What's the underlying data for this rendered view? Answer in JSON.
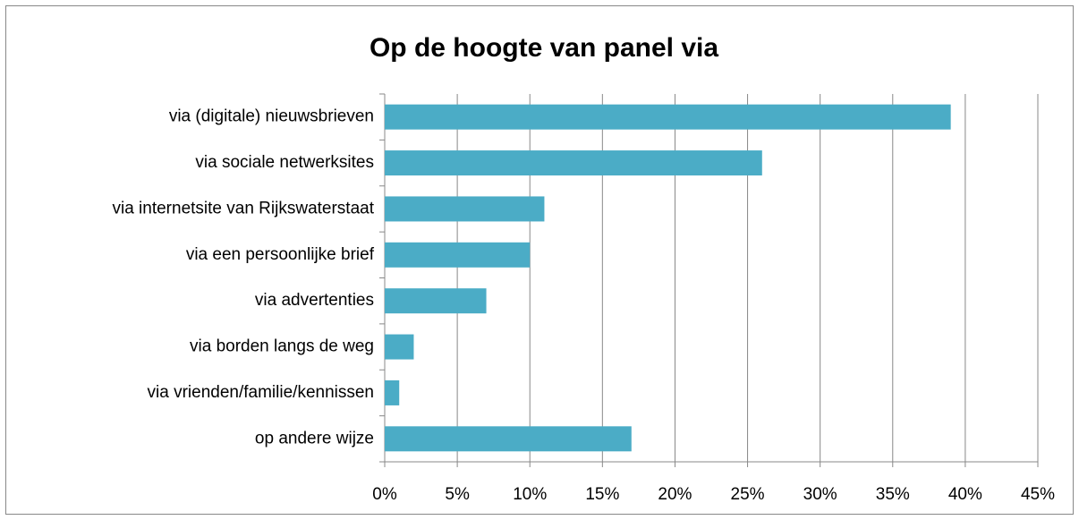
{
  "chart_data": {
    "type": "bar",
    "orientation": "horizontal",
    "title": "Op de hoogte van panel via",
    "categories": [
      "via (digitale) nieuwsbrieven",
      "via sociale netwerksites",
      "via internetsite van Rijkswaterstaat",
      "via een persoonlijke brief",
      "via advertenties",
      "via borden langs de weg",
      "via vrienden/familie/kennissen",
      "op andere wijze"
    ],
    "values": [
      39,
      26,
      11,
      10,
      7,
      2,
      1,
      17
    ],
    "color": "#4bacc6",
    "xlim": [
      0,
      45
    ],
    "xticks": [
      {
        "value": 0,
        "label": "0%"
      },
      {
        "value": 5,
        "label": "5%"
      },
      {
        "value": 10,
        "label": "10%"
      },
      {
        "value": 15,
        "label": "15%"
      },
      {
        "value": 20,
        "label": "20%"
      },
      {
        "value": 25,
        "label": "25%"
      },
      {
        "value": 30,
        "label": "30%"
      },
      {
        "value": 35,
        "label": "35%"
      },
      {
        "value": 40,
        "label": "40%"
      },
      {
        "value": 45,
        "label": "45%"
      }
    ],
    "grid": true
  }
}
